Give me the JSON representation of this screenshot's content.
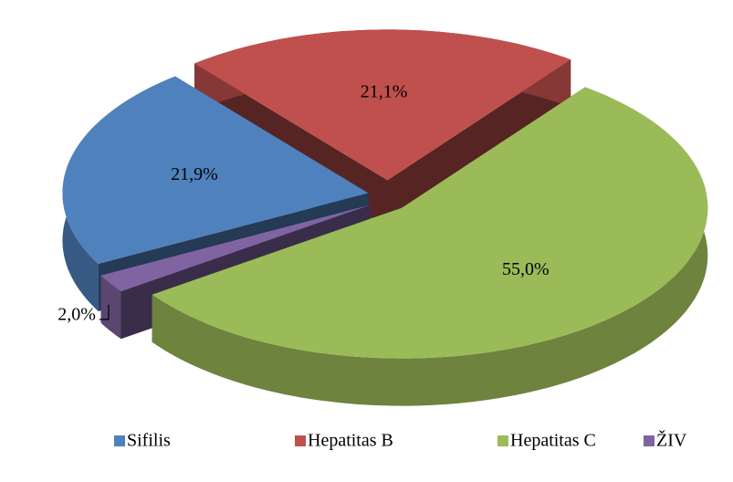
{
  "chart_data": {
    "type": "pie3d",
    "categories": [
      "Sifilis",
      "Hepatitas B",
      "Hepatitas C",
      "ŽIV"
    ],
    "values": [
      21.9,
      21.1,
      55.0,
      2.0
    ],
    "value_labels": [
      "21,9%",
      "21,1%",
      "55,0%",
      "2,0%"
    ],
    "colors": [
      "#4f81bd",
      "#c0504d",
      "#9bbb59",
      "#8064a2"
    ],
    "legend": "bottom"
  }
}
